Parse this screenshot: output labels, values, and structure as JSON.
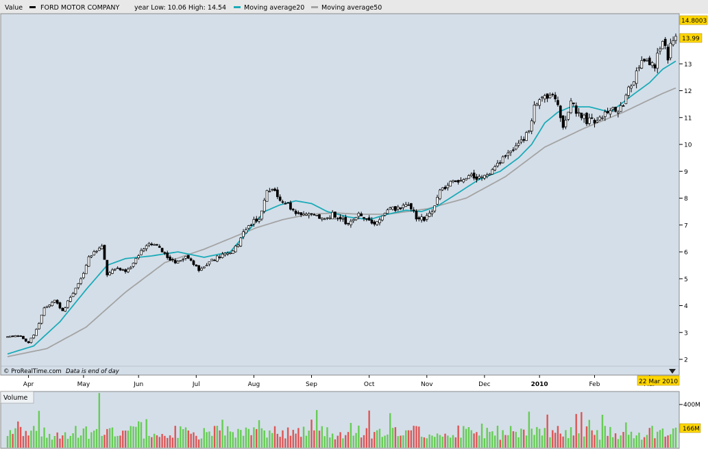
{
  "header": {
    "value_label": "Value",
    "company": "FORD MOTOR COMPANY",
    "year_range": "year Low: 10.06 High: 14.54",
    "ma20_label": "Moving average20",
    "ma50_label": "Moving average50"
  },
  "footer": {
    "source": "© ProRealTime.com",
    "note": "Data is end of day",
    "date_flag": "22 Mar 2010"
  },
  "volume_panel": {
    "label": "Volume",
    "tick_label": "400M",
    "last_value": "166M"
  },
  "price_flags": {
    "high": "14.8003",
    "last": "13.99"
  },
  "colors": {
    "background": "#d4dee8",
    "ma20": "#1aabb8",
    "ma50": "#a3a3a3",
    "vol_up": "#66cc55",
    "vol_down": "#dd5555",
    "flag": "#ffd700"
  },
  "chart_data": {
    "type": "candlestick",
    "yticks": [
      2,
      3,
      4,
      5,
      6,
      7,
      8,
      9,
      10,
      11,
      12,
      13
    ],
    "ylim": [
      1.7,
      14.8
    ],
    "x_months": [
      "Apr",
      "May",
      "Jun",
      "Jul",
      "Aug",
      "Sep",
      "Oct",
      "Nov",
      "Dec",
      "2010",
      "Feb",
      "Mar"
    ],
    "close_anchors": [
      [
        0,
        2.85
      ],
      [
        5,
        2.85
      ],
      [
        8,
        2.6
      ],
      [
        11,
        3.1
      ],
      [
        14,
        3.9
      ],
      [
        18,
        4.2
      ],
      [
        21,
        3.8
      ],
      [
        24,
        4.3
      ],
      [
        28,
        5.0
      ],
      [
        31,
        5.8
      ],
      [
        34,
        6.0
      ],
      [
        36,
        6.2
      ],
      [
        38,
        5.2
      ],
      [
        41,
        5.4
      ],
      [
        46,
        5.3
      ],
      [
        50,
        5.9
      ],
      [
        53,
        6.3
      ],
      [
        57,
        6.2
      ],
      [
        60,
        5.9
      ],
      [
        64,
        5.6
      ],
      [
        69,
        5.8
      ],
      [
        73,
        5.3
      ],
      [
        77,
        5.6
      ],
      [
        80,
        5.8
      ],
      [
        86,
        6.0
      ],
      [
        89,
        6.5
      ],
      [
        92,
        7.0
      ],
      [
        96,
        7.3
      ],
      [
        99,
        8.2
      ],
      [
        101,
        8.4
      ],
      [
        104,
        7.9
      ],
      [
        107,
        7.75
      ],
      [
        111,
        7.4
      ],
      [
        115,
        7.5
      ],
      [
        120,
        7.2
      ],
      [
        124,
        7.4
      ],
      [
        127,
        7.25
      ],
      [
        130,
        7.0
      ],
      [
        134,
        7.5
      ],
      [
        138,
        7.1
      ],
      [
        141,
        7.1
      ],
      [
        145,
        7.6
      ],
      [
        149,
        7.6
      ],
      [
        153,
        7.7
      ],
      [
        156,
        7.3
      ],
      [
        159,
        7.2
      ],
      [
        162,
        7.5
      ],
      [
        165,
        8.3
      ],
      [
        170,
        8.6
      ],
      [
        175,
        8.8
      ],
      [
        180,
        8.8
      ],
      [
        184,
        9.0
      ],
      [
        188,
        9.3
      ],
      [
        192,
        9.8
      ],
      [
        197,
        10.2
      ],
      [
        199,
        10.6
      ],
      [
        201,
        11.4
      ],
      [
        204,
        11.7
      ],
      [
        207,
        11.8
      ],
      [
        210,
        11.5
      ],
      [
        212,
        10.7
      ],
      [
        215,
        11.6
      ],
      [
        218,
        11.1
      ],
      [
        221,
        10.9
      ],
      [
        224,
        10.9
      ],
      [
        227,
        11.1
      ],
      [
        230,
        11.4
      ],
      [
        233,
        11.1
      ],
      [
        236,
        11.8
      ],
      [
        239,
        12.4
      ],
      [
        242,
        13.0
      ],
      [
        245,
        13.0
      ],
      [
        247,
        13.0
      ],
      [
        249,
        13.6
      ],
      [
        250,
        14.0
      ],
      [
        251,
        13.8
      ],
      [
        252,
        13.3
      ],
      [
        253,
        13.6
      ],
      [
        254,
        13.9
      ],
      [
        255,
        14.0
      ]
    ],
    "ma20": [
      [
        0,
        2.2
      ],
      [
        10,
        2.5
      ],
      [
        20,
        3.4
      ],
      [
        30,
        4.6
      ],
      [
        38,
        5.5
      ],
      [
        45,
        5.75
      ],
      [
        55,
        5.85
      ],
      [
        65,
        6.0
      ],
      [
        75,
        5.8
      ],
      [
        85,
        6.0
      ],
      [
        92,
        6.8
      ],
      [
        98,
        7.5
      ],
      [
        104,
        7.75
      ],
      [
        110,
        7.9
      ],
      [
        116,
        7.8
      ],
      [
        122,
        7.5
      ],
      [
        130,
        7.3
      ],
      [
        138,
        7.2
      ],
      [
        145,
        7.4
      ],
      [
        152,
        7.55
      ],
      [
        158,
        7.5
      ],
      [
        164,
        7.7
      ],
      [
        172,
        8.2
      ],
      [
        180,
        8.7
      ],
      [
        188,
        9.0
      ],
      [
        195,
        9.5
      ],
      [
        200,
        10.0
      ],
      [
        205,
        10.8
      ],
      [
        210,
        11.2
      ],
      [
        215,
        11.4
      ],
      [
        222,
        11.4
      ],
      [
        230,
        11.2
      ],
      [
        238,
        11.8
      ],
      [
        245,
        12.3
      ],
      [
        250,
        12.8
      ],
      [
        255,
        13.1
      ]
    ],
    "ma50": [
      [
        0,
        2.1
      ],
      [
        15,
        2.4
      ],
      [
        30,
        3.2
      ],
      [
        45,
        4.5
      ],
      [
        60,
        5.6
      ],
      [
        75,
        6.1
      ],
      [
        85,
        6.5
      ],
      [
        95,
        6.9
      ],
      [
        105,
        7.2
      ],
      [
        115,
        7.4
      ],
      [
        125,
        7.45
      ],
      [
        135,
        7.4
      ],
      [
        145,
        7.4
      ],
      [
        160,
        7.6
      ],
      [
        175,
        8.0
      ],
      [
        190,
        8.8
      ],
      [
        205,
        9.9
      ],
      [
        220,
        10.6
      ],
      [
        235,
        11.2
      ],
      [
        250,
        11.9
      ],
      [
        255,
        12.1
      ]
    ],
    "volume_ticks": [
      400
    ]
  }
}
